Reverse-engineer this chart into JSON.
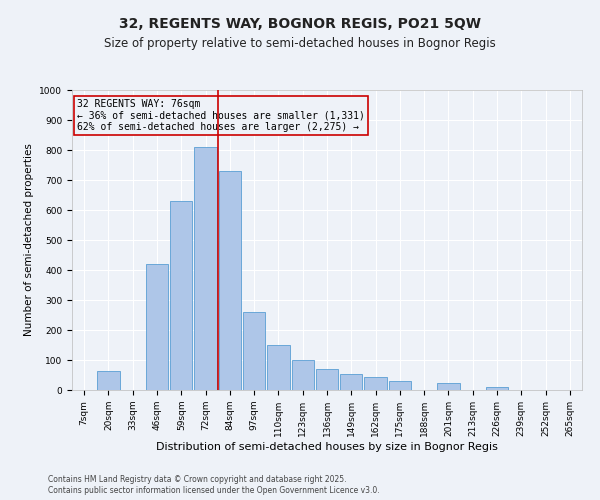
{
  "title": "32, REGENTS WAY, BOGNOR REGIS, PO21 5QW",
  "subtitle": "Size of property relative to semi-detached houses in Bognor Regis",
  "xlabel": "Distribution of semi-detached houses by size in Bognor Regis",
  "ylabel": "Number of semi-detached properties",
  "footnote1": "Contains HM Land Registry data © Crown copyright and database right 2025.",
  "footnote2": "Contains public sector information licensed under the Open Government Licence v3.0.",
  "bins": [
    "7sqm",
    "20sqm",
    "33sqm",
    "46sqm",
    "59sqm",
    "72sqm",
    "84sqm",
    "97sqm",
    "110sqm",
    "123sqm",
    "136sqm",
    "149sqm",
    "162sqm",
    "175sqm",
    "188sqm",
    "201sqm",
    "213sqm",
    "226sqm",
    "239sqm",
    "252sqm",
    "265sqm"
  ],
  "values": [
    0,
    65,
    0,
    420,
    630,
    810,
    730,
    260,
    150,
    100,
    70,
    55,
    45,
    30,
    0,
    25,
    0,
    10,
    0,
    0,
    0
  ],
  "bar_color": "#aec6e8",
  "bar_edge_color": "#5a9fd4",
  "property_line_x": 5.5,
  "property_line_color": "#cc0000",
  "annotation_box_text": "32 REGENTS WAY: 76sqm\n← 36% of semi-detached houses are smaller (1,331)\n62% of semi-detached houses are larger (2,275) →",
  "annotation_box_color": "#cc0000",
  "ylim": [
    0,
    1000
  ],
  "yticks": [
    0,
    100,
    200,
    300,
    400,
    500,
    600,
    700,
    800,
    900,
    1000
  ],
  "background_color": "#eef2f8",
  "grid_color": "#ffffff",
  "title_fontsize": 10,
  "subtitle_fontsize": 8.5,
  "footnote_fontsize": 5.5,
  "ylabel_fontsize": 7.5,
  "xlabel_fontsize": 8,
  "tick_fontsize": 6.5,
  "annot_fontsize": 7
}
